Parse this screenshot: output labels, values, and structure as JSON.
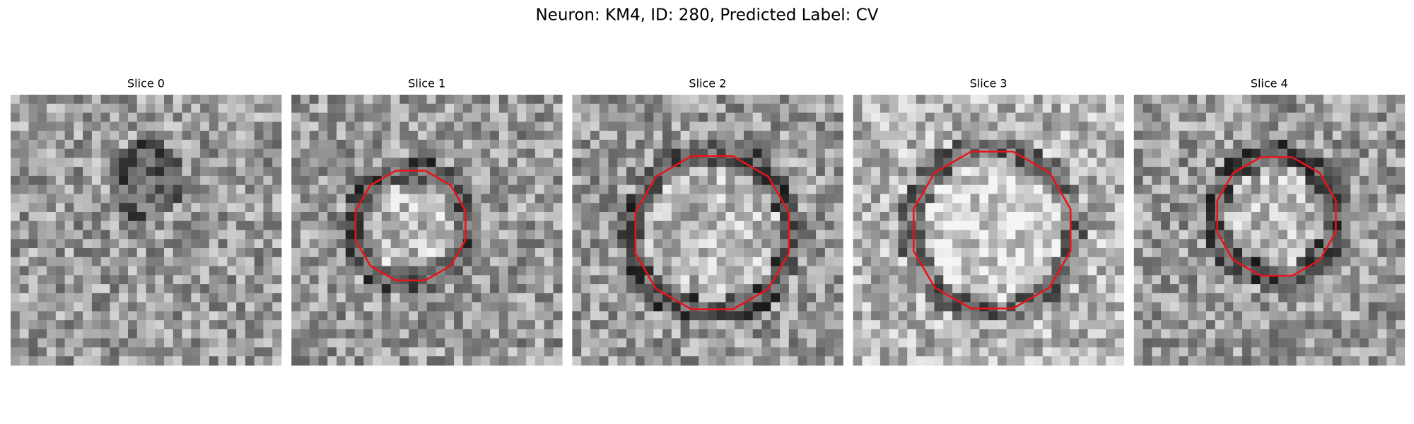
{
  "title": "Neuron: KM4, ID: 280, Predicted Label: CV",
  "panels": [
    {
      "label": "Slice 0"
    },
    {
      "label": "Slice 1"
    },
    {
      "label": "Slice 2"
    },
    {
      "label": "Slice 3"
    },
    {
      "label": "Slice 4"
    }
  ]
}
